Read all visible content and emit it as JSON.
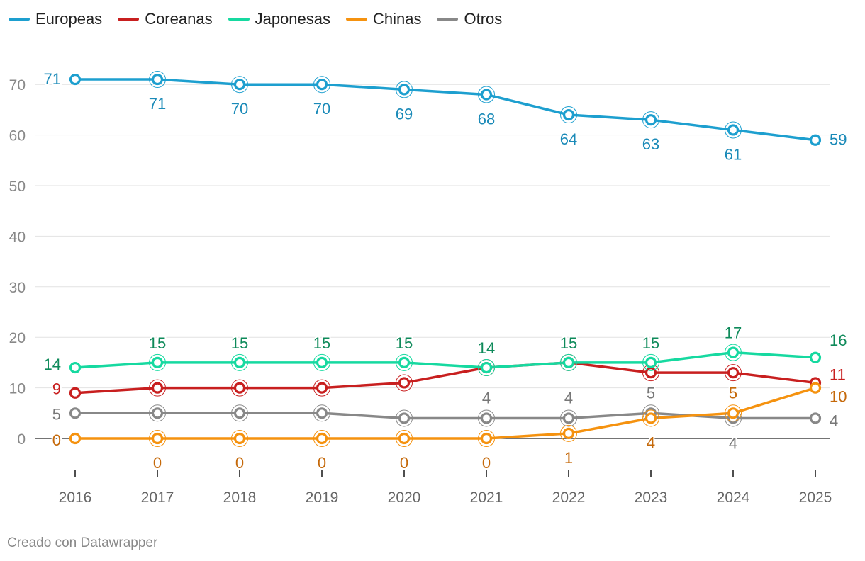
{
  "chart_data": {
    "type": "line",
    "title": "",
    "xlabel": "",
    "ylabel": "",
    "x": [
      "2016",
      "2017",
      "2018",
      "2019",
      "2020",
      "2021",
      "2022",
      "2023",
      "2024",
      "2025"
    ],
    "ylim": [
      0,
      75
    ],
    "yticks": [
      0,
      10,
      20,
      30,
      40,
      50,
      60,
      70
    ],
    "grid": true,
    "legend_position": "top-left",
    "series": [
      {
        "name": "Europeas",
        "color": "#1d9fcf",
        "label_color": "#1a8ab8",
        "values": [
          71,
          71,
          70,
          70,
          69,
          68,
          64,
          63,
          61,
          59
        ]
      },
      {
        "name": "Coreanas",
        "color": "#c81f1f",
        "label_color": "#c81f1f",
        "values": [
          9,
          10,
          10,
          10,
          11,
          14,
          15,
          13,
          13,
          11
        ]
      },
      {
        "name": "Japonesas",
        "color": "#16d9a0",
        "label_color": "#0e8a5a",
        "values": [
          14,
          15,
          15,
          15,
          15,
          14,
          15,
          15,
          17,
          16
        ]
      },
      {
        "name": "Chinas",
        "color": "#f5920f",
        "label_color": "#c5690a",
        "values": [
          0,
          0,
          0,
          0,
          0,
          0,
          1,
          4,
          5,
          10
        ]
      },
      {
        "name": "Otros",
        "color": "#888888",
        "label_color": "#777777",
        "values": [
          5,
          5,
          5,
          5,
          4,
          4,
          4,
          5,
          4,
          4
        ]
      }
    ]
  },
  "footer": "Creado con Datawrapper"
}
